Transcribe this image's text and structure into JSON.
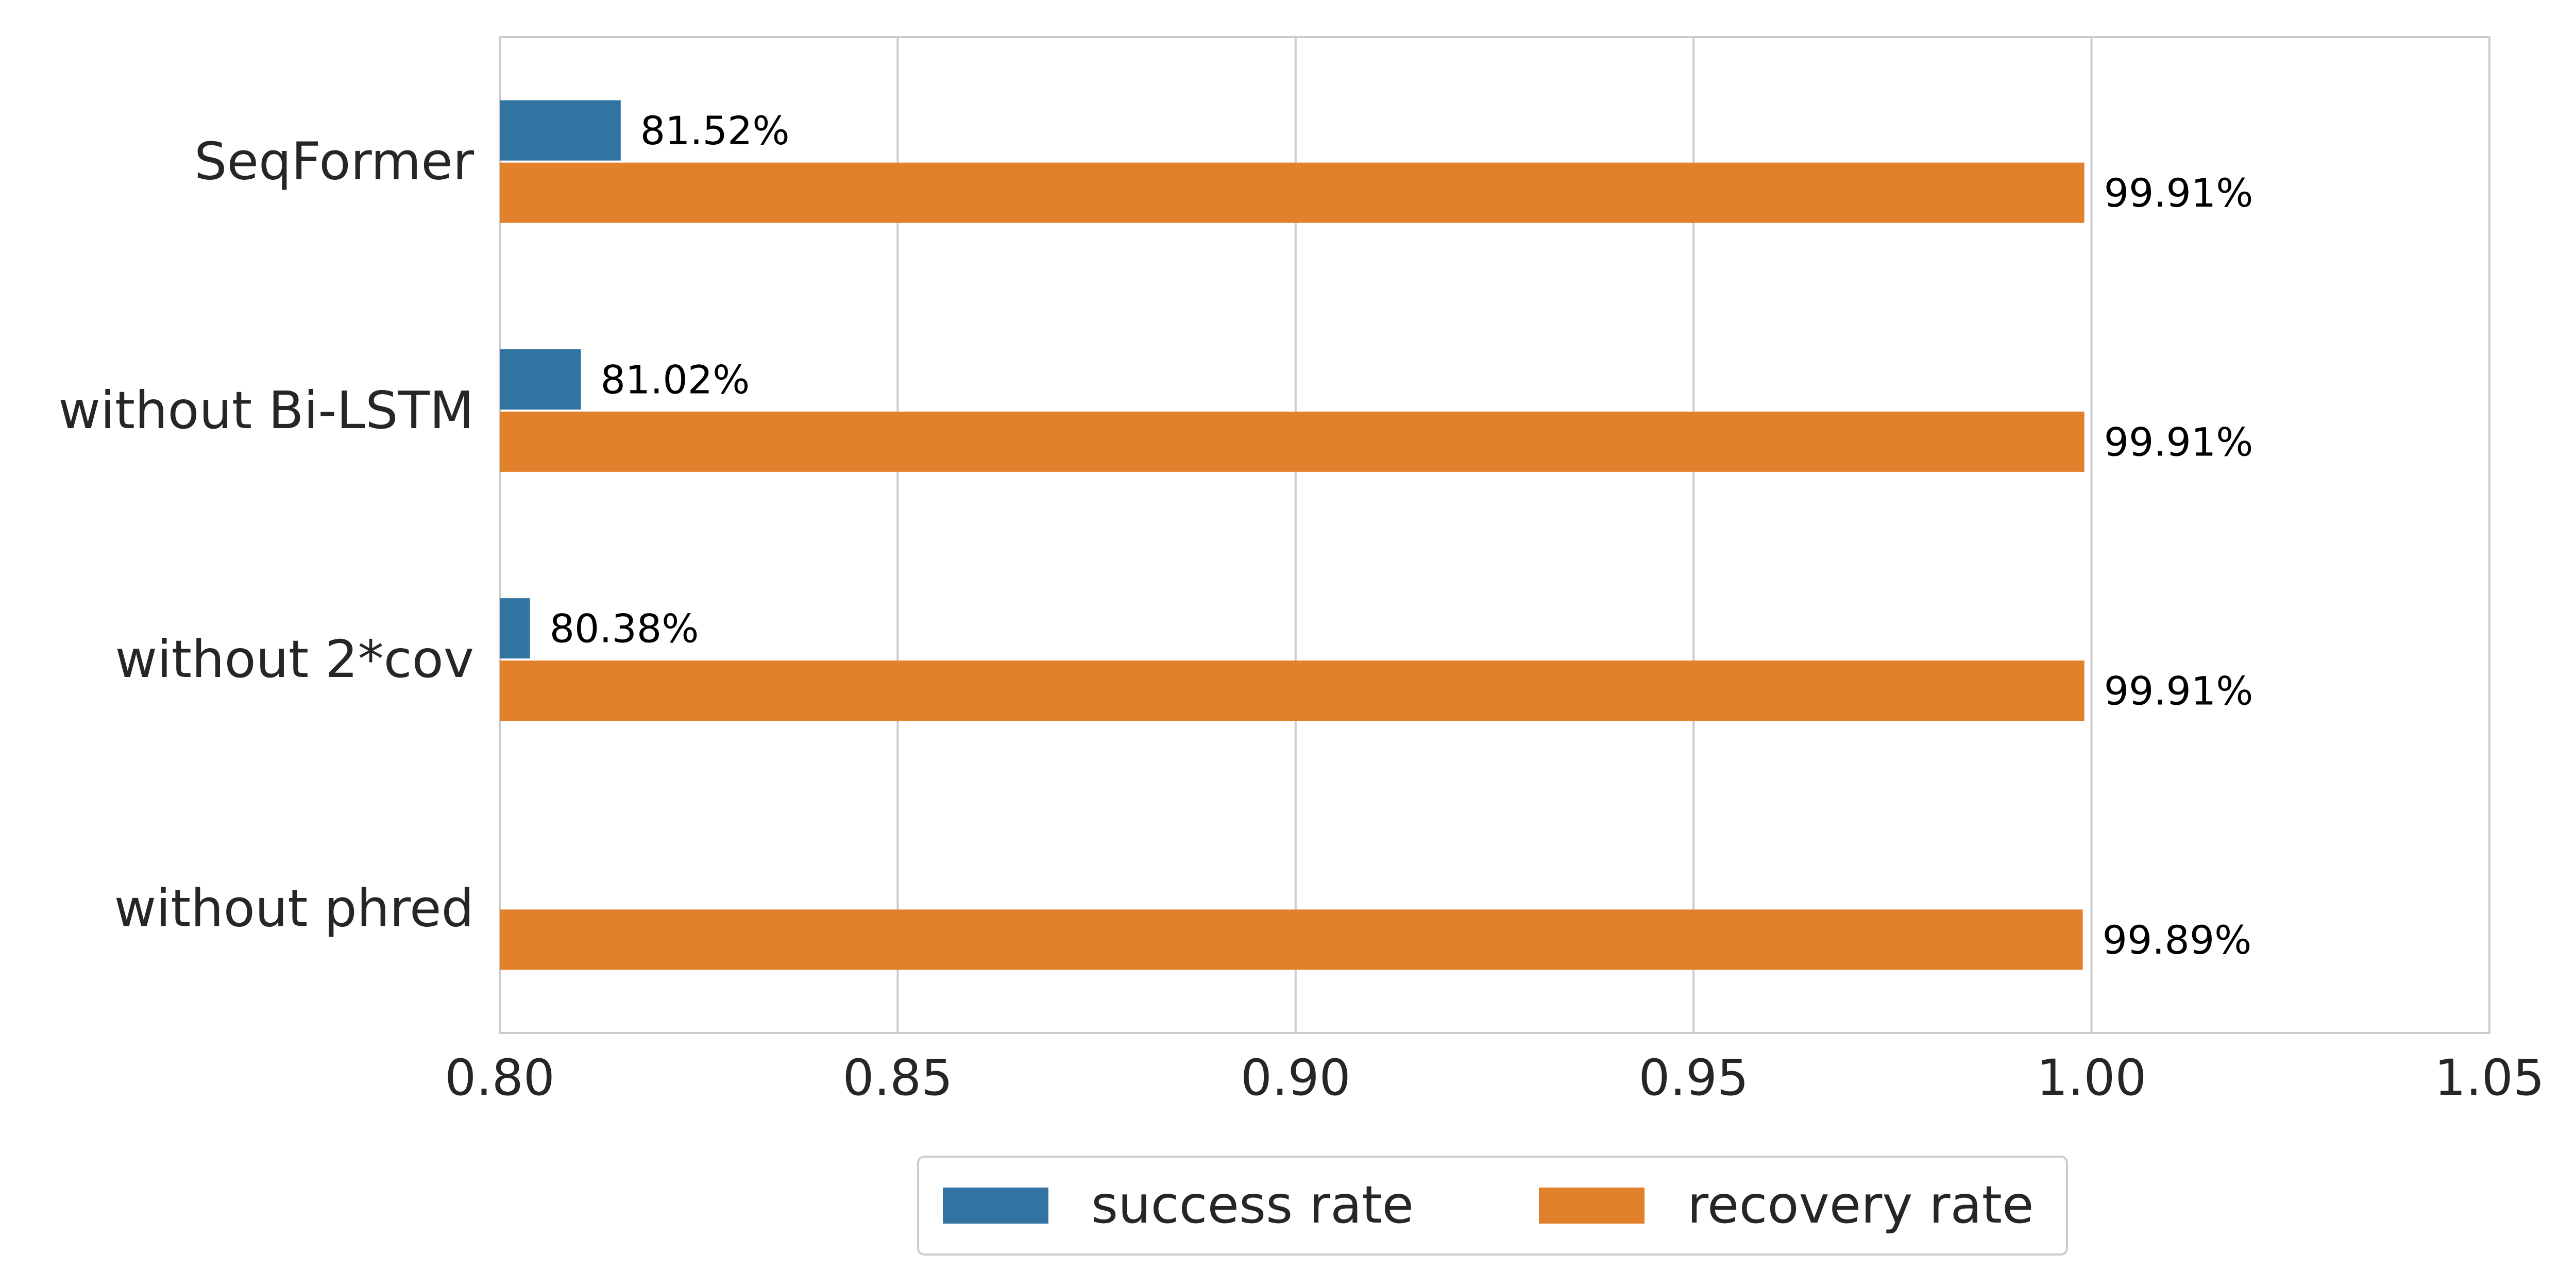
{
  "chart_data": {
    "type": "bar",
    "orientation": "horizontal",
    "categories": [
      "SeqFormer",
      "without Bi-LSTM",
      "without 2*cov",
      "without phred"
    ],
    "series": [
      {
        "name": "success rate",
        "color": "#3274a1",
        "values": [
          0.8152,
          0.8102,
          0.8038,
          null
        ],
        "labels": [
          "81.52%",
          "81.02%",
          "80.38%",
          ""
        ]
      },
      {
        "name": "recovery rate",
        "color": "#e1812c",
        "values": [
          0.9991,
          0.9991,
          0.9991,
          0.9989
        ],
        "labels": [
          "99.91%",
          "99.91%",
          "99.91%",
          "99.89%"
        ]
      }
    ],
    "xlim": [
      0.8,
      1.05
    ],
    "xticks": [
      "0.80",
      "0.85",
      "0.90",
      "0.95",
      "1.00",
      "1.05"
    ],
    "xlabel": "",
    "ylabel": "",
    "title": "",
    "grid": "vertical",
    "legend": "bottom-center"
  }
}
